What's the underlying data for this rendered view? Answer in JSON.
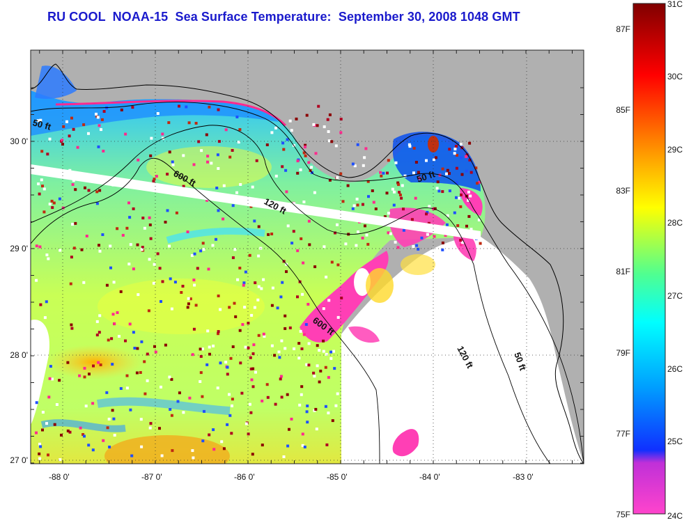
{
  "title": "RU COOL  NOAA-15  Sea Surface Temperature:  September 30, 2008 1048 GMT",
  "map": {
    "lon_ticks": [
      "-88 0'",
      "-87 0'",
      "-86 0'",
      "-85 0'",
      "-84 0'",
      "-83 0'"
    ],
    "lat_ticks": [
      "30 0'",
      "29 0'",
      "28 0'",
      "27 0'"
    ],
    "contours": [
      "50 ft",
      "600 ft",
      "120 ft",
      "50 ft",
      "600 ft",
      "120 ft",
      "50 ft"
    ],
    "land_color": "#b0b0b0",
    "cloud_color": "#ffffff"
  },
  "colorbar": {
    "celsius": [
      "31C",
      "30C",
      "29C",
      "28C",
      "27C",
      "26C",
      "25C",
      "24C"
    ],
    "fahrenheit": [
      "87F",
      "85F",
      "83F",
      "81F",
      "79F",
      "77F",
      "75F"
    ],
    "stops": [
      "#ff44cc",
      "#a020e0",
      "#0020ff",
      "#00a0ff",
      "#00ffff",
      "#40ff90",
      "#b0ff30",
      "#ffff00",
      "#ffa000",
      "#ff4000",
      "#ff0000",
      "#800000"
    ]
  }
}
